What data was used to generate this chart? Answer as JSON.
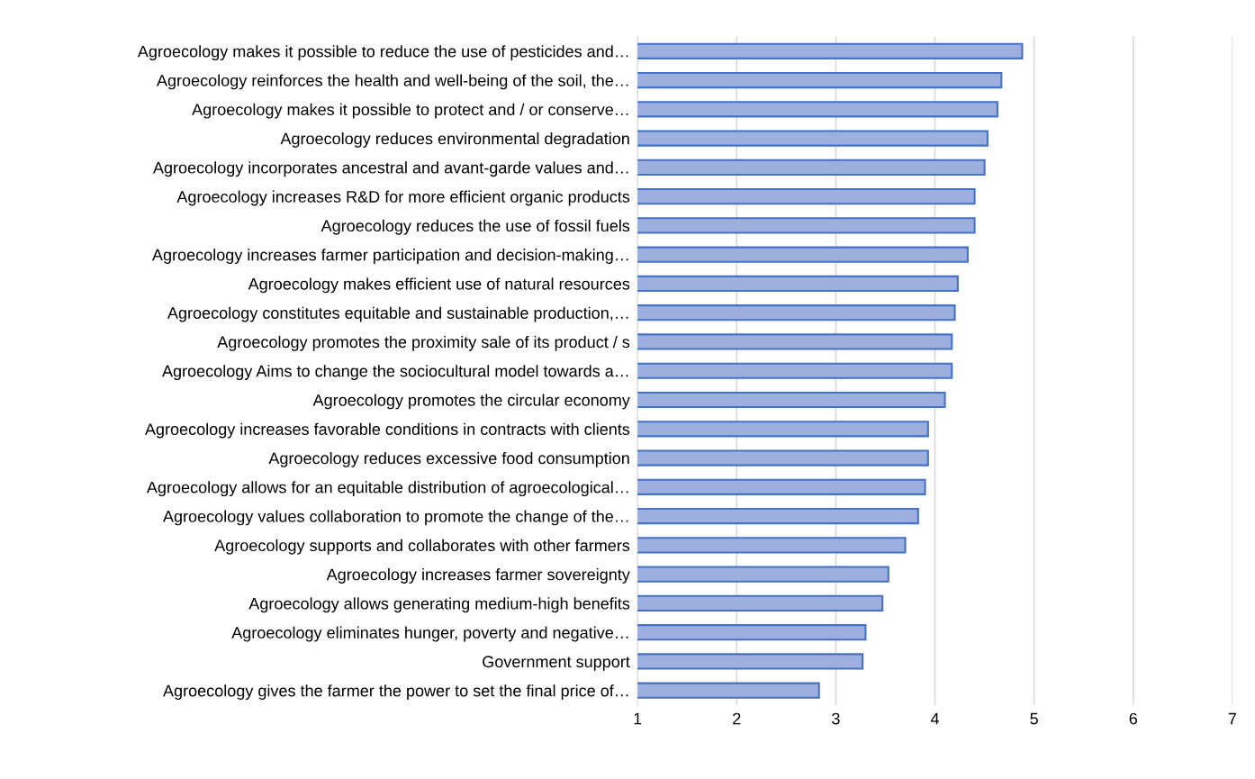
{
  "chart_data": {
    "type": "bar",
    "orientation": "horizontal",
    "categories": [
      "Agroecology makes it possible to reduce the use of pesticides and…",
      "Agroecology reinforces the health and well-being of the soil, the…",
      "Agroecology makes it possible to protect and / or conserve…",
      "Agroecology reduces environmental degradation",
      "Agroecology incorporates ancestral and avant-garde values and…",
      "Agroecology increases R&D for more efficient organic products",
      "Agroecology reduces the use of fossil fuels",
      "Agroecology increases farmer participation and decision-making…",
      "Agroecology makes efficient use of natural resources",
      "Agroecology constitutes equitable and sustainable production,…",
      "Agroecology promotes the proximity sale of its product / s",
      "Agroecology Aims to change the sociocultural model towards a…",
      "Agroecology promotes the circular economy",
      "Agroecology increases favorable conditions in contracts with clients",
      "Agroecology reduces excessive food consumption",
      "Agroecology allows for an equitable distribution of agroecological…",
      "Agroecology values collaboration to promote the change of the…",
      "Agroecology supports and collaborates with other farmers",
      "Agroecology increases farmer sovereignty",
      "Agroecology allows generating medium-high benefits",
      "Agroecology eliminates hunger, poverty and negative…",
      "Government support",
      "Agroecology gives the farmer the power to set the final price of…"
    ],
    "values": [
      4.88,
      4.67,
      4.63,
      4.53,
      4.5,
      4.4,
      4.4,
      4.33,
      4.23,
      4.2,
      4.17,
      4.17,
      4.1,
      3.93,
      3.93,
      3.9,
      3.83,
      3.7,
      3.53,
      3.47,
      3.3,
      3.27,
      2.83
    ],
    "color": "#9dafdf",
    "xlim": [
      1,
      7
    ],
    "xticks": [
      1,
      2,
      3,
      4,
      5,
      6,
      7
    ],
    "grid": "x",
    "legend": false
  }
}
